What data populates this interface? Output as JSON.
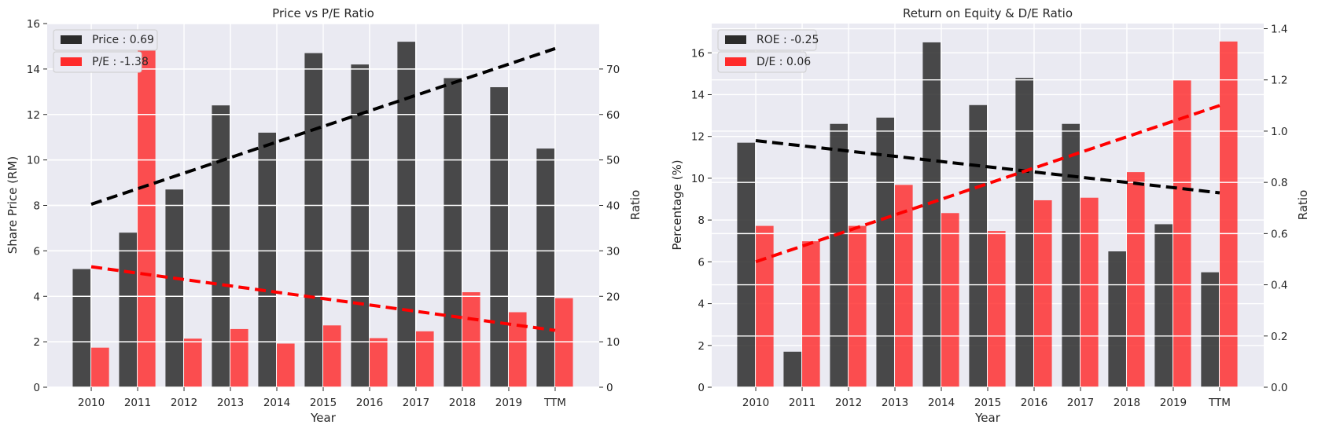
{
  "chart_data": [
    {
      "type": "bar",
      "title": "Price vs P/E Ratio",
      "xlabel": "Year",
      "ylabel": "Share Price (RM)",
      "y2label": "Ratio",
      "categories": [
        "2010",
        "2011",
        "2012",
        "2013",
        "2014",
        "2015",
        "2016",
        "2017",
        "2018",
        "2019",
        "TTM"
      ],
      "ylim": [
        0,
        16
      ],
      "y2lim": [
        0,
        80
      ],
      "yticks": [
        0,
        2,
        4,
        6,
        8,
        10,
        12,
        14,
        16
      ],
      "y2ticks": [
        0,
        10,
        20,
        30,
        40,
        50,
        60,
        70
      ],
      "grid": true,
      "legend_position": "top-left",
      "series": [
        {
          "name": "Price : 0.69",
          "axis": "left",
          "color": "#2b2b2b",
          "values": [
            5.2,
            6.8,
            8.7,
            12.4,
            11.2,
            14.7,
            14.2,
            15.2,
            13.6,
            13.2,
            10.5
          ]
        },
        {
          "name": "P/E : -1.38",
          "axis": "right",
          "color": "#ff2b2b",
          "values": [
            8.7,
            76.0,
            10.7,
            12.8,
            9.6,
            13.6,
            10.8,
            12.3,
            20.9,
            16.5,
            19.6
          ]
        }
      ],
      "trendlines": [
        {
          "series": "Price : 0.69",
          "axis": "left",
          "color": "#000000",
          "start": 8.05,
          "end": 14.9
        },
        {
          "series": "P/E : -1.38",
          "axis": "right",
          "color": "#ff0000",
          "start": 26.5,
          "end": 12.5
        }
      ]
    },
    {
      "type": "bar",
      "title": "Return on Equity & D/E Ratio",
      "xlabel": "Year",
      "ylabel": "Percentage (%)",
      "y2label": "Ratio",
      "categories": [
        "2010",
        "2011",
        "2012",
        "2013",
        "2014",
        "2015",
        "2016",
        "2017",
        "2018",
        "2019",
        "TTM"
      ],
      "ylim": [
        0,
        17.4
      ],
      "y2lim": [
        0,
        1.42
      ],
      "yticks": [
        0,
        2,
        4,
        6,
        8,
        10,
        12,
        14,
        16
      ],
      "y2ticks": [
        0.0,
        0.2,
        0.4,
        0.6,
        0.8,
        1.0,
        1.2,
        1.4
      ],
      "grid": true,
      "legend_position": "top-left",
      "series": [
        {
          "name": "ROE : -0.25",
          "axis": "left",
          "color": "#2b2b2b",
          "values": [
            11.7,
            1.7,
            12.6,
            12.9,
            16.5,
            13.5,
            14.8,
            12.6,
            6.5,
            7.8,
            5.5
          ]
        },
        {
          "name": "D/E : 0.06",
          "axis": "right",
          "color": "#ff2b2b",
          "values": [
            0.63,
            0.57,
            0.63,
            0.79,
            0.68,
            0.61,
            0.73,
            0.74,
            0.84,
            1.2,
            1.35
          ]
        }
      ],
      "trendlines": [
        {
          "series": "ROE : -0.25",
          "axis": "left",
          "color": "#000000",
          "start": 11.8,
          "end": 9.3
        },
        {
          "series": "D/E : 0.06",
          "axis": "right",
          "color": "#ff0000",
          "start": 0.49,
          "end": 1.1
        }
      ]
    }
  ]
}
